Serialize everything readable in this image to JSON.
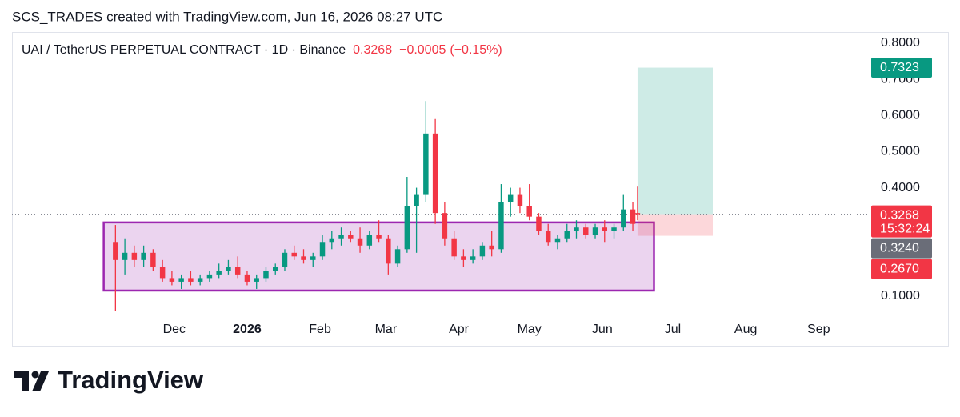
{
  "header": "SCS_TRADES created with TradingView.com, Jun 16, 2026 08:27 UTC",
  "brand": "TradingView",
  "chart_data": {
    "type": "candlestick",
    "title": "UAI / TetherUS PERPETUAL CONTRACT · 1D · Binance",
    "change": {
      "value": -0.0005,
      "label": "−0.0005"
    },
    "change_pct": {
      "value": -0.15,
      "label": "(−0.15%)"
    },
    "countdown": "15:32:24",
    "x": [
      "2025-11-06",
      "2025-11-10",
      "2025-11-14",
      "2025-11-18",
      "2025-11-22",
      "2025-11-26",
      "2025-11-30",
      "2025-12-04",
      "2025-12-08",
      "2025-12-12",
      "2025-12-16",
      "2025-12-20",
      "2025-12-24",
      "2025-12-28",
      "2026-01-01",
      "2026-01-05",
      "2026-01-09",
      "2026-01-13",
      "2026-01-17",
      "2026-01-21",
      "2026-01-25",
      "2026-01-29",
      "2026-02-02",
      "2026-02-06",
      "2026-02-10",
      "2026-02-14",
      "2026-02-18",
      "2026-02-22",
      "2026-02-26",
      "2026-03-02",
      "2026-03-06",
      "2026-03-10",
      "2026-03-14",
      "2026-03-18",
      "2026-03-22",
      "2026-03-26",
      "2026-03-30",
      "2026-04-03",
      "2026-04-07",
      "2026-04-11",
      "2026-04-15",
      "2026-04-19",
      "2026-04-23",
      "2026-04-27",
      "2026-05-01",
      "2026-05-05",
      "2026-05-09",
      "2026-05-13",
      "2026-05-17",
      "2026-05-21",
      "2026-05-25",
      "2026-05-29",
      "2026-06-02",
      "2026-06-06",
      "2026-06-10",
      "2026-06-14",
      "2026-06-16"
    ],
    "series": [
      {
        "up_color": "#089981",
        "down_color": "#f23645",
        "open": [
          0.25,
          0.2,
          0.22,
          0.2,
          0.22,
          0.18,
          0.15,
          0.14,
          0.15,
          0.14,
          0.15,
          0.16,
          0.17,
          0.18,
          0.16,
          0.14,
          0.15,
          0.17,
          0.18,
          0.22,
          0.21,
          0.2,
          0.21,
          0.25,
          0.26,
          0.27,
          0.26,
          0.24,
          0.27,
          0.26,
          0.19,
          0.23,
          0.35,
          0.38,
          0.55,
          0.33,
          0.26,
          0.21,
          0.2,
          0.21,
          0.24,
          0.23,
          0.36,
          0.38,
          0.35,
          0.32,
          0.28,
          0.25,
          0.26,
          0.28,
          0.29,
          0.27,
          0.29,
          0.28,
          0.29,
          0.34,
          0.33
        ],
        "high": [
          0.297,
          0.26,
          0.24,
          0.24,
          0.23,
          0.2,
          0.17,
          0.16,
          0.17,
          0.16,
          0.17,
          0.19,
          0.2,
          0.21,
          0.17,
          0.16,
          0.18,
          0.19,
          0.23,
          0.24,
          0.23,
          0.22,
          0.27,
          0.28,
          0.29,
          0.28,
          0.29,
          0.28,
          0.31,
          0.27,
          0.24,
          0.43,
          0.4,
          0.64,
          0.59,
          0.36,
          0.28,
          0.23,
          0.23,
          0.25,
          0.28,
          0.41,
          0.4,
          0.4,
          0.41,
          0.33,
          0.3,
          0.27,
          0.3,
          0.31,
          0.3,
          0.3,
          0.31,
          0.3,
          0.38,
          0.36,
          0.403
        ],
        "low": [
          0.06,
          0.16,
          0.18,
          0.18,
          0.17,
          0.14,
          0.13,
          0.12,
          0.13,
          0.13,
          0.14,
          0.15,
          0.16,
          0.15,
          0.13,
          0.12,
          0.14,
          0.16,
          0.17,
          0.2,
          0.19,
          0.18,
          0.2,
          0.23,
          0.24,
          0.25,
          0.22,
          0.23,
          0.25,
          0.16,
          0.18,
          0.22,
          0.22,
          0.36,
          0.3,
          0.24,
          0.2,
          0.18,
          0.19,
          0.2,
          0.21,
          0.22,
          0.32,
          0.33,
          0.31,
          0.27,
          0.24,
          0.23,
          0.25,
          0.26,
          0.26,
          0.26,
          0.25,
          0.26,
          0.28,
          0.28,
          0.31
        ],
        "close": [
          0.2,
          0.22,
          0.2,
          0.22,
          0.18,
          0.15,
          0.14,
          0.15,
          0.14,
          0.15,
          0.16,
          0.17,
          0.18,
          0.16,
          0.14,
          0.15,
          0.17,
          0.18,
          0.22,
          0.21,
          0.2,
          0.21,
          0.25,
          0.26,
          0.27,
          0.26,
          0.24,
          0.27,
          0.26,
          0.19,
          0.23,
          0.35,
          0.38,
          0.55,
          0.33,
          0.26,
          0.21,
          0.2,
          0.21,
          0.24,
          0.23,
          0.36,
          0.38,
          0.35,
          0.32,
          0.28,
          0.25,
          0.26,
          0.28,
          0.29,
          0.27,
          0.29,
          0.28,
          0.29,
          0.34,
          0.3,
          0.3268
        ]
      }
    ],
    "box": {
      "x": [
        "2025-11-01",
        "2026-06-23"
      ],
      "y": [
        0.1155,
        0.304
      ],
      "color": "#9c27b0"
    },
    "position": {
      "x": [
        "2026-06-16",
        "2026-07-18"
      ],
      "entry": 0.3268,
      "target": 0.7323,
      "stop": {
        "value": 0.267,
        "label": "0.2670"
      },
      "target_color": "#089981",
      "stop_color": "#f23645"
    },
    "price_line": {
      "value": 0.324,
      "label": "0.3240",
      "color": "#6a6d78"
    },
    "xlim": [
      "2025-09-23",
      "2026-09-22"
    ],
    "xticks": [
      {
        "value": "2025-12-01",
        "label": "Dec"
      },
      {
        "value": "2026-01-01",
        "label": "2026"
      },
      {
        "value": "2026-02-01",
        "label": "Feb"
      },
      {
        "value": "2026-03-01",
        "label": "Mar"
      },
      {
        "value": "2026-04-01",
        "label": "Apr"
      },
      {
        "value": "2026-05-01",
        "label": "May"
      },
      {
        "value": "2026-06-01",
        "label": "Jun"
      },
      {
        "value": "2026-07-01",
        "label": "Jul"
      },
      {
        "value": "2026-08-01",
        "label": "Aug"
      },
      {
        "value": "2026-09-01",
        "label": "Sep"
      }
    ],
    "ylim": [
      0.0335,
      0.831
    ],
    "yticks": [
      {
        "value": 0.1,
        "label": "0.1000"
      },
      {
        "value": 0.4,
        "label": "0.4000"
      },
      {
        "value": 0.5,
        "label": "0.5000"
      },
      {
        "value": 0.6,
        "label": "0.6000"
      },
      {
        "value": 0.7,
        "label": "0.7000"
      },
      {
        "value": 0.8,
        "label": "0.8000"
      }
    ],
    "grid": false
  }
}
